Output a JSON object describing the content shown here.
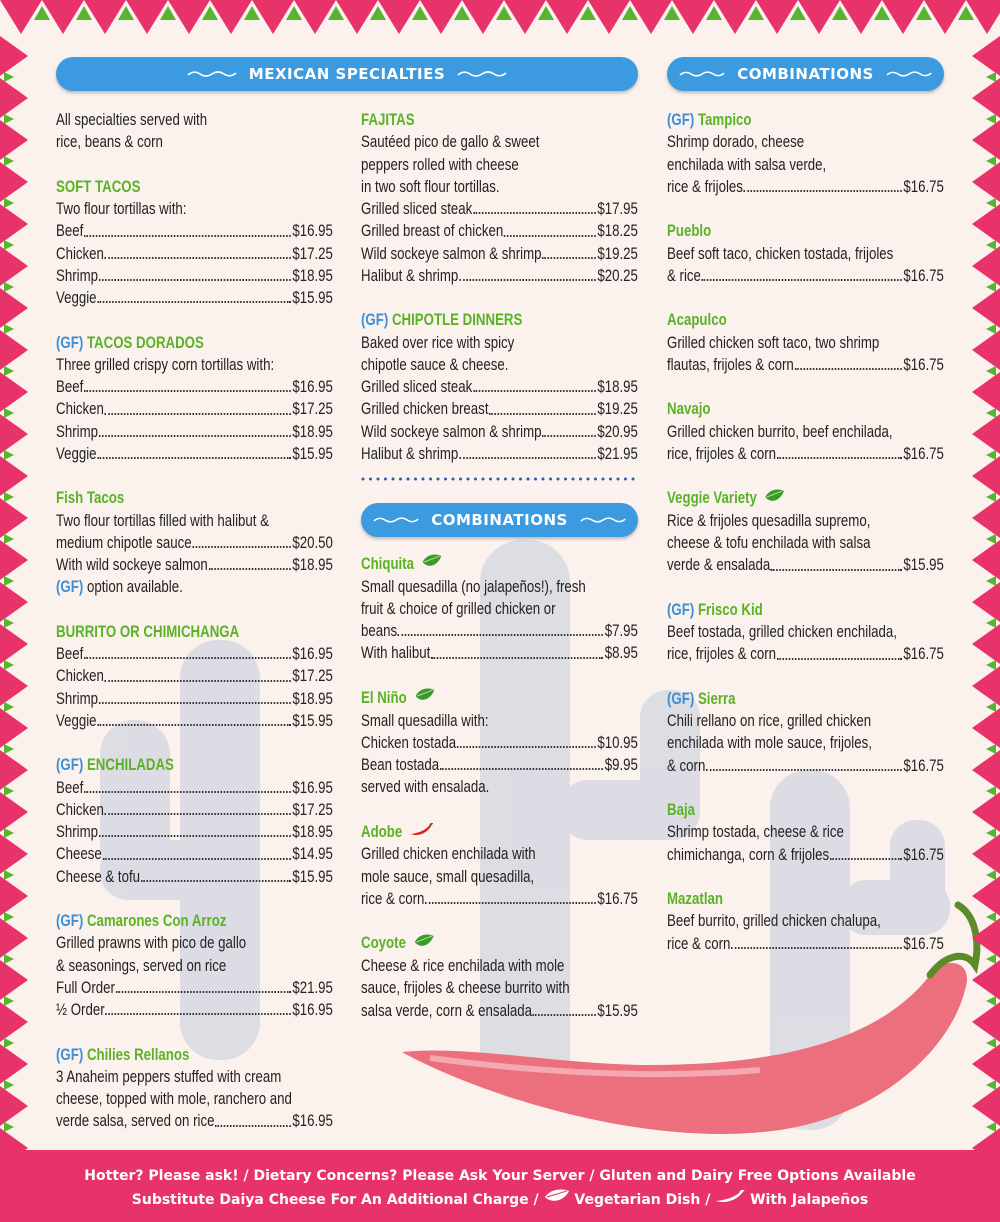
{
  "specialties": {
    "title": "MEXICAN SPECIALTIES",
    "left": [
      {
        "lines": [
          "All specialties served with",
          "rice, beans & corn"
        ]
      },
      {
        "name": "SOFT TACOS",
        "lines": [
          "Two flour tortillas with:"
        ],
        "rows": [
          [
            "Beef",
            "$16.95"
          ],
          [
            "Chicken",
            "$17.25"
          ],
          [
            "Shrimp",
            "$18.95"
          ],
          [
            "Veggie",
            "$15.95"
          ]
        ]
      },
      {
        "gf": "(GF)",
        "name": "TACOS DORADOS",
        "lines": [
          "Three grilled crispy corn tortillas with:"
        ],
        "rows": [
          [
            "Beef",
            "$16.95"
          ],
          [
            "Chicken",
            "$17.25"
          ],
          [
            "Shrimp",
            "$18.95"
          ],
          [
            "Veggie",
            "$15.95"
          ]
        ]
      },
      {
        "name": "Fish Tacos",
        "lines": [
          "Two flour tortillas filled with halibut &"
        ],
        "rows": [
          [
            "medium chipotle sauce",
            "$20.50"
          ],
          [
            "With wild sockeye salmon",
            "$18.95"
          ]
        ],
        "note": {
          "gf": "(GF)",
          "text": "option available."
        }
      },
      {
        "name": "BURRITO OR CHIMICHANGA",
        "rows": [
          [
            "Beef",
            "$16.95"
          ],
          [
            "Chicken",
            "$17.25"
          ],
          [
            "Shrimp",
            "$18.95"
          ],
          [
            "Veggie",
            "$15.95"
          ]
        ]
      },
      {
        "gf": "(GF)",
        "name": "ENCHILADAS",
        "rows": [
          [
            "Beef",
            "$16.95"
          ],
          [
            "Chicken",
            "$17.25"
          ],
          [
            "Shrimp",
            "$18.95"
          ],
          [
            "Cheese",
            "$14.95"
          ],
          [
            "Cheese & tofu",
            "$15.95"
          ]
        ]
      },
      {
        "gf": "(GF)",
        "name": "Camarones Con Arroz",
        "lines": [
          "Grilled prawns with pico de gallo",
          "& seasonings, served on rice"
        ],
        "rows": [
          [
            "Full Order",
            "$21.95"
          ],
          [
            "½ Order",
            "$16.95"
          ]
        ]
      },
      {
        "gf": "(GF)",
        "name": "Chilies Rellanos",
        "lines": [
          "3 Anaheim peppers stuffed with cream",
          "cheese, topped with mole, ranchero and"
        ],
        "rows": [
          [
            "verde salsa, served on rice",
            "$16.95"
          ]
        ]
      }
    ],
    "right": [
      {
        "name": "FAJITAS",
        "lines": [
          "Sautéed pico de gallo & sweet",
          "peppers rolled with cheese",
          "in two soft flour tortillas."
        ],
        "rows": [
          [
            "Grilled sliced steak",
            "$17.95"
          ],
          [
            "Grilled breast of chicken",
            "$18.25"
          ],
          [
            "Wild sockeye salmon & shrimp",
            "$19.25"
          ],
          [
            "Halibut & shrimp",
            "$20.25"
          ]
        ]
      },
      {
        "gf": "(GF)",
        "name": "CHIPOTLE DINNERS",
        "lines": [
          "Baked over rice with spicy",
          "chipotle sauce & cheese."
        ],
        "rows": [
          [
            "Grilled sliced steak",
            "$18.95"
          ],
          [
            "Grilled chicken breast",
            "$19.25"
          ],
          [
            "Wild sockeye salmon & shrimp",
            "$20.95"
          ],
          [
            "Halibut & shrimp",
            "$21.95"
          ]
        ]
      }
    ]
  },
  "combinations_middle": {
    "title": "COMBINATIONS",
    "items": [
      {
        "name": "Chiquita",
        "lines": [
          "Small quesadilla (no jalapeños!), fresh",
          "fruit & choice of grilled chicken or"
        ],
        "rows": [
          [
            "beans",
            "$7.95"
          ],
          [
            "With halibut",
            "$8.95"
          ]
        ]
      },
      {
        "name": "El Niño",
        "lines": [
          "Small quesadilla with:"
        ],
        "rows": [
          [
            "Chicken tostada",
            "$10.95"
          ],
          [
            "Bean tostada",
            "$9.95"
          ]
        ],
        "after": [
          "served with ensalada."
        ]
      },
      {
        "name": "Adobe",
        "lines": [
          "Grilled chicken enchilada with",
          "mole sauce, small quesadilla,"
        ],
        "rows": [
          [
            "rice & corn",
            "$16.75"
          ]
        ]
      },
      {
        "name": "Coyote",
        "lines": [
          "Cheese & rice enchilada with mole",
          "sauce, frijoles & cheese burrito with"
        ],
        "rows": [
          [
            "salsa verde, corn & ensalada",
            "$15.95"
          ]
        ]
      }
    ]
  },
  "combinations_right": {
    "title": "COMBINATIONS",
    "items": [
      {
        "gf": "(GF)",
        "name": "Tampico",
        "lines": [
          "Shrimp dorado, cheese",
          "enchilada with salsa verde,"
        ],
        "rows": [
          [
            "rice & frijoles",
            "$16.75"
          ]
        ]
      },
      {
        "name": "Pueblo",
        "lines": [
          "Beef soft taco, chicken tostada, frijoles"
        ],
        "rows": [
          [
            "& rice",
            "$16.75"
          ]
        ]
      },
      {
        "name": "Acapulco",
        "lines": [
          "Grilled chicken soft taco, two shrimp"
        ],
        "rows": [
          [
            "flautas, frijoles & corn",
            "$16.75"
          ]
        ]
      },
      {
        "name": "Navajo",
        "lines": [
          "Grilled chicken burrito, beef enchilada,"
        ],
        "rows": [
          [
            "rice, frijoles & corn",
            "$16.75"
          ]
        ]
      },
      {
        "name": "Veggie Variety",
        "lines": [
          "Rice & frijoles quesadilla supremo,",
          "cheese & tofu enchilada with salsa"
        ],
        "rows": [
          [
            "verde & ensalada",
            "$15.95"
          ]
        ]
      },
      {
        "gf": "(GF)",
        "name": "Frisco Kid",
        "lines": [
          "Beef tostada, grilled chicken enchilada,"
        ],
        "rows": [
          [
            "rice, frijoles & corn",
            "$16.75"
          ]
        ]
      },
      {
        "gf": "(GF)",
        "name": "Sierra",
        "lines": [
          "Chili rellano on rice, grilled chicken",
          "enchilada with mole sauce, frijoles,"
        ],
        "rows": [
          [
            "& corn",
            "$16.75"
          ]
        ]
      },
      {
        "name": "Baja",
        "lines": [
          "Shrimp tostada, cheese & rice"
        ],
        "rows": [
          [
            "chimichanga, corn & frijoles",
            "$16.75"
          ]
        ]
      },
      {
        "name": "Mazatlan",
        "lines": [
          "Beef burrito, grilled chicken chalupa,"
        ],
        "rows": [
          [
            "rice & corn",
            "$16.75"
          ]
        ]
      }
    ]
  },
  "footer": {
    "line1": "Hotter? Please ask! / Dietary Concerns? Please Ask Your Server / Gluten and Dairy Free Options Available",
    "line2": [
      "Substitute Daiya Cheese For An Additional Charge /",
      "Vegetarian Dish /",
      "With Jalapeños"
    ]
  }
}
